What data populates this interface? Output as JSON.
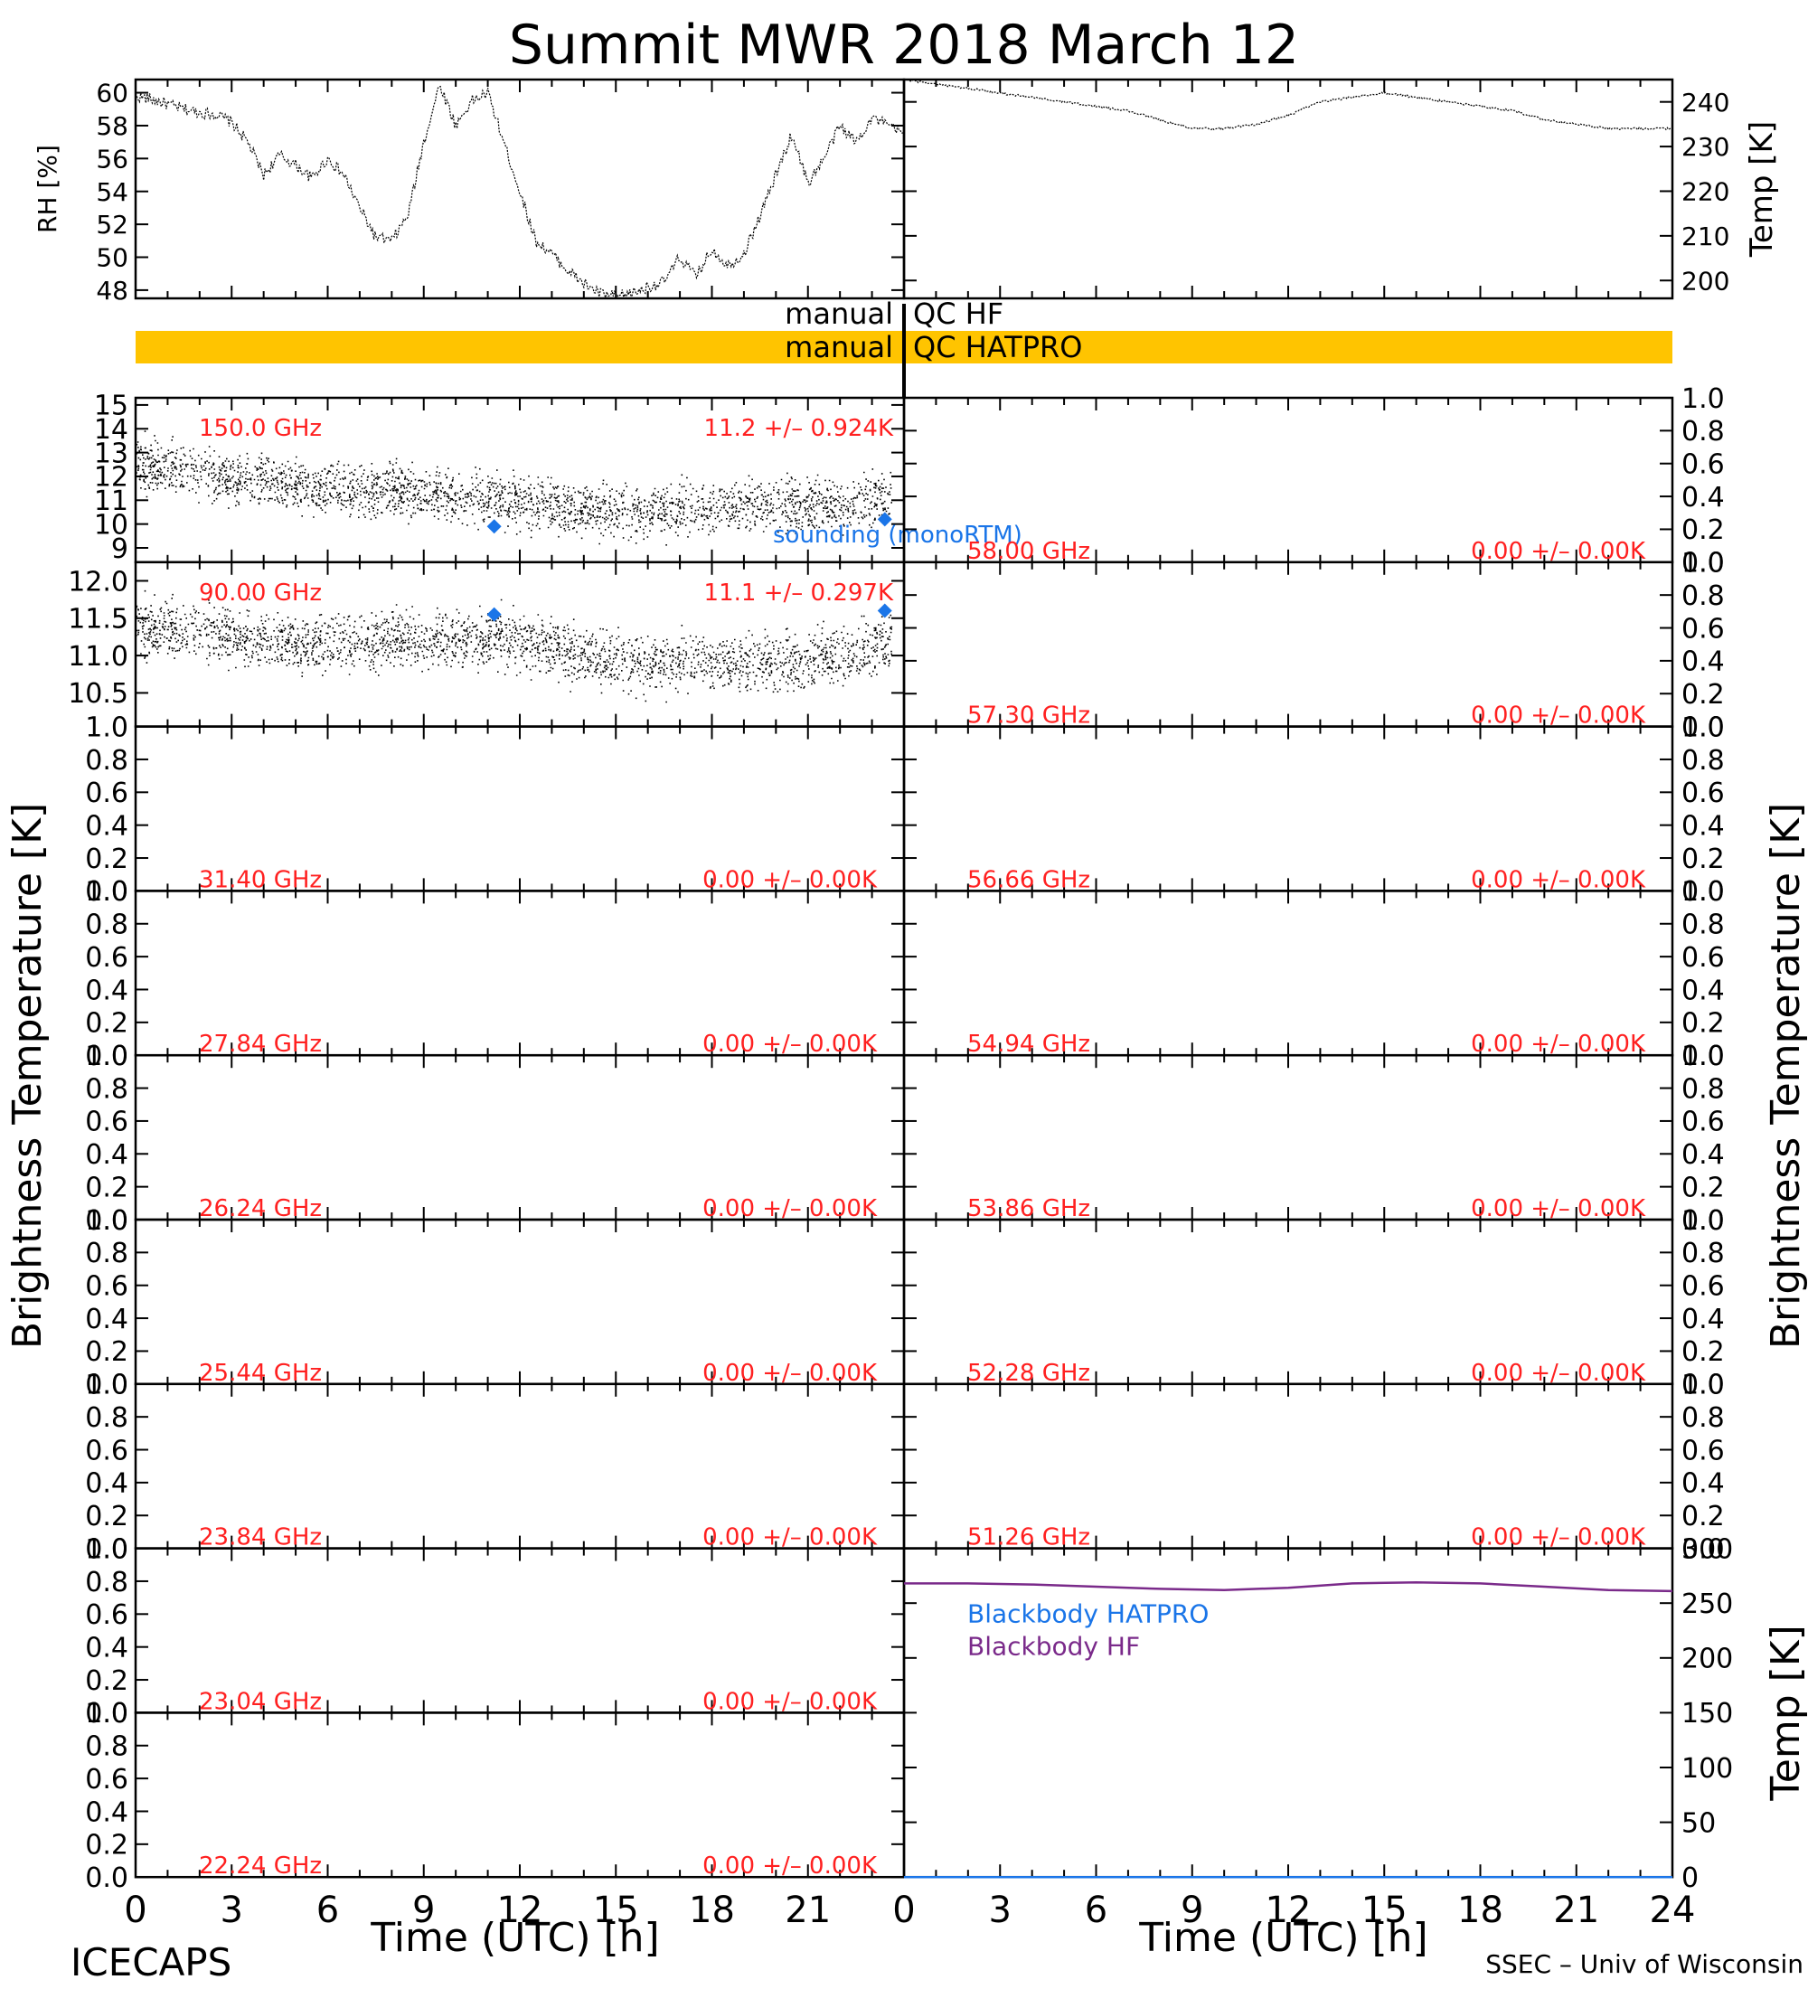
{
  "title": "Summit MWR 2018 March 12",
  "footer_left": "ICECAPS",
  "footer_right": "SSEC – Univ of Wisconsin",
  "colors": {
    "annotation": "#ff2020",
    "sounding": "#1a75e8",
    "qc_bar": "#ffc400",
    "bb_hf": "#7a2a8a",
    "bb_hatpro": "#1a75e8",
    "trace": "#000000"
  },
  "left_ylabel": "Brightness Temperature [K]",
  "right_ylabel": "Brightness Temperature [K]",
  "xaxis": {
    "label": "Time (UTC) [h]",
    "range": [
      0,
      24
    ],
    "ticks": [
      "0",
      "3",
      "6",
      "9",
      "12",
      "15",
      "18",
      "21"
    ],
    "ticks_right": [
      "0",
      "3",
      "6",
      "9",
      "12",
      "15",
      "18",
      "21",
      "24"
    ]
  },
  "qc": {
    "hf_label_left": "manual",
    "hf_label_right": "QC HF",
    "hatpro_label_left": "manual",
    "hatpro_label_right": "QC HATPRO"
  },
  "empty_ticks": [
    "0.0",
    "0.2",
    "0.4",
    "0.6",
    "0.8",
    "1.0"
  ],
  "sounding_label": "sounding (monoRTM)",
  "chart_data": [
    {
      "id": "rh",
      "type": "line",
      "ylabel": "RH [%]",
      "ylim": [
        47.5,
        60.8
      ],
      "yticks": [
        "48",
        "50",
        "52",
        "54",
        "56",
        "58",
        "60"
      ],
      "x": [
        0,
        0.5,
        1,
        1.5,
        2,
        2.5,
        3,
        3.5,
        4,
        4.5,
        5,
        5.5,
        6,
        6.5,
        7,
        7.5,
        8,
        8.5,
        9,
        9.5,
        10,
        10.5,
        11,
        11.5,
        12,
        12.5,
        13,
        13.5,
        14,
        14.5,
        15,
        15.5,
        16,
        16.5,
        17,
        17.5,
        18,
        18.5,
        19,
        19.5,
        20,
        20.5,
        21,
        21.5,
        22,
        22.5,
        23,
        23.5,
        24
      ],
      "y": [
        59.8,
        59.6,
        59.3,
        59.0,
        58.8,
        58.7,
        58.2,
        57.0,
        55.0,
        56.2,
        55.6,
        54.8,
        56.0,
        55.0,
        53.0,
        51.2,
        51.0,
        52.5,
        57.0,
        60.5,
        58.0,
        59.5,
        60.0,
        57.0,
        54.0,
        51.0,
        50.2,
        49.2,
        48.4,
        47.8,
        47.6,
        47.8,
        48.2,
        48.5,
        50.0,
        48.8,
        50.5,
        49.5,
        50.2,
        52.5,
        55.0,
        57.5,
        54.5,
        56.0,
        58.0,
        57.0,
        58.5,
        58.0,
        57.5
      ]
    },
    {
      "id": "temp",
      "type": "line",
      "ylabel": "Temp [K]",
      "ylim": [
        196,
        245
      ],
      "yticks": [
        "200",
        "210",
        "220",
        "230",
        "240"
      ],
      "x": [
        0,
        1,
        2,
        3,
        4,
        5,
        6,
        7,
        8,
        9,
        10,
        11,
        12,
        13,
        14,
        15,
        16,
        17,
        18,
        19,
        20,
        21,
        22,
        23,
        24
      ],
      "y": [
        245,
        244,
        243,
        242,
        241,
        240,
        239,
        238,
        236,
        234,
        234,
        235,
        237,
        240,
        241,
        242,
        241,
        240,
        239,
        238,
        236,
        235,
        234,
        234,
        234
      ]
    },
    {
      "id": "ch150",
      "type": "scatter",
      "freq": "150.0 GHz",
      "stat": "11.2 +/– 0.924K",
      "ylim": [
        8.4,
        15.3
      ],
      "yticks": [
        "9",
        "10",
        "11",
        "12",
        "13",
        "14",
        "15"
      ],
      "trend_x": [
        0,
        2,
        4,
        6,
        8,
        10,
        12,
        14,
        16,
        18,
        20,
        22,
        23.5
      ],
      "trend_y": [
        12.6,
        12.1,
        11.8,
        11.5,
        11.4,
        11.2,
        10.9,
        10.6,
        10.6,
        10.8,
        10.9,
        10.7,
        11.2
      ],
      "spread": 1.0,
      "sounding": [
        {
          "x": 11.2,
          "y": 9.9
        },
        {
          "x": 23.4,
          "y": 10.2
        }
      ]
    },
    {
      "id": "ch90",
      "type": "scatter",
      "freq": "90.00 GHz",
      "stat": "11.1 +/– 0.297K",
      "ylim": [
        10.05,
        12.25
      ],
      "yticks": [
        "10.5",
        "11.0",
        "11.5",
        "12.0"
      ],
      "trend_x": [
        0,
        2,
        4,
        6,
        8,
        10,
        12,
        14,
        16,
        18,
        20,
        22,
        23.5
      ],
      "trend_y": [
        11.4,
        11.3,
        11.2,
        11.15,
        11.2,
        11.25,
        11.2,
        11.0,
        10.9,
        10.95,
        10.9,
        11.0,
        11.2
      ],
      "spread": 0.35,
      "sounding": [
        {
          "x": 11.2,
          "y": 11.55
        },
        {
          "x": 23.4,
          "y": 11.6
        }
      ]
    },
    {
      "id": "ch3140",
      "type": "scatter",
      "freq": "31.40 GHz",
      "stat": "0.00 +/– 0.00K",
      "ylim": [
        0,
        1
      ]
    },
    {
      "id": "ch2784",
      "type": "scatter",
      "freq": "27.84 GHz",
      "stat": "0.00 +/– 0.00K",
      "ylim": [
        0,
        1
      ]
    },
    {
      "id": "ch2624",
      "type": "scatter",
      "freq": "26.24 GHz",
      "stat": "0.00 +/– 0.00K",
      "ylim": [
        0,
        1
      ]
    },
    {
      "id": "ch2544",
      "type": "scatter",
      "freq": "25.44 GHz",
      "stat": "0.00 +/– 0.00K",
      "ylim": [
        0,
        1
      ]
    },
    {
      "id": "ch2384",
      "type": "scatter",
      "freq": "23.84 GHz",
      "stat": "0.00 +/– 0.00K",
      "ylim": [
        0,
        1
      ]
    },
    {
      "id": "ch2304",
      "type": "scatter",
      "freq": "23.04 GHz",
      "stat": "0.00 +/– 0.00K",
      "ylim": [
        0,
        1
      ]
    },
    {
      "id": "ch2224",
      "type": "scatter",
      "freq": "22.24 GHz",
      "stat": "0.00 +/– 0.00K",
      "ylim": [
        0,
        1
      ]
    },
    {
      "id": "ch5800",
      "type": "scatter",
      "freq": "58.00 GHz",
      "stat": "0.00 +/– 0.00K",
      "ylim": [
        0,
        1
      ]
    },
    {
      "id": "ch5730",
      "type": "scatter",
      "freq": "57.30 GHz",
      "stat": "0.00 +/– 0.00K",
      "ylim": [
        0,
        1
      ]
    },
    {
      "id": "ch5666",
      "type": "scatter",
      "freq": "56.66 GHz",
      "stat": "0.00 +/– 0.00K",
      "ylim": [
        0,
        1
      ]
    },
    {
      "id": "ch5494",
      "type": "scatter",
      "freq": "54.94 GHz",
      "stat": "0.00 +/– 0.00K",
      "ylim": [
        0,
        1
      ]
    },
    {
      "id": "ch5386",
      "type": "scatter",
      "freq": "53.86 GHz",
      "stat": "0.00 +/– 0.00K",
      "ylim": [
        0,
        1
      ]
    },
    {
      "id": "ch5228",
      "type": "scatter",
      "freq": "52.28 GHz",
      "stat": "0.00 +/– 0.00K",
      "ylim": [
        0,
        1
      ]
    },
    {
      "id": "ch5126",
      "type": "scatter",
      "freq": "51.26 GHz",
      "stat": "0.00 +/– 0.00K",
      "ylim": [
        0,
        1
      ]
    },
    {
      "id": "blackbody",
      "type": "line",
      "ylabel": "Temp [K]",
      "ylim": [
        0,
        300
      ],
      "yticks": [
        "0",
        "50",
        "100",
        "150",
        "200",
        "250",
        "300"
      ],
      "legend": [
        "Blackbody HATPRO",
        "Blackbody HF"
      ],
      "x": [
        0,
        2,
        4,
        6,
        8,
        10,
        12,
        14,
        16,
        18,
        20,
        22,
        24
      ],
      "y": [
        268,
        268,
        267,
        265,
        263,
        262,
        264,
        268,
        269,
        268,
        265,
        262,
        261
      ],
      "hatpro_y": 0
    }
  ]
}
